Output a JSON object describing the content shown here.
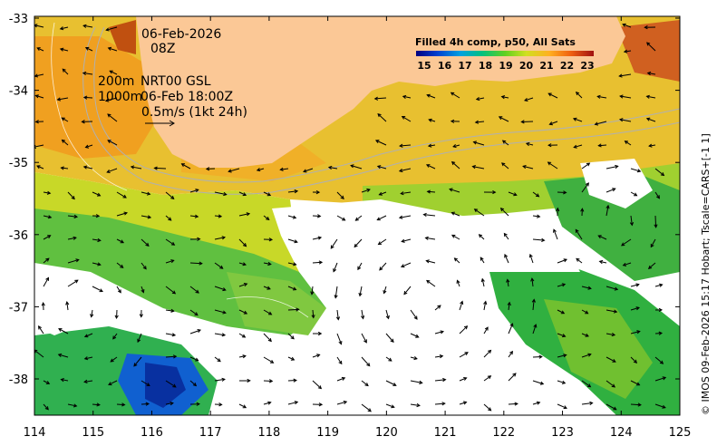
{
  "map": {
    "date_line": "06-Feb-2026",
    "time_line": "08Z",
    "depth_200": "200m",
    "depth_1000": "1000m",
    "model_line": "NRT00 GSL",
    "model_time": "06-Feb 18:00Z",
    "scale_label": "0.5m/s (1kt 24h)",
    "colorbar_title": "Filled 4h comp, p50, All Sats",
    "colorbar_ticks": [
      "15",
      "16",
      "17",
      "18",
      "19",
      "20",
      "21",
      "22",
      "23"
    ],
    "colorbar_colors": [
      "#000080",
      "#0030c0",
      "#0080e0",
      "#00c0c0",
      "#20c060",
      "#80d020",
      "#e0e020",
      "#ffa020",
      "#e05010",
      "#a01010"
    ],
    "x_ticks": [
      "114",
      "115",
      "116",
      "117",
      "118",
      "119",
      "120",
      "121",
      "122",
      "123",
      "124",
      "125"
    ],
    "y_ticks": [
      "-33",
      "-34",
      "-35",
      "-36",
      "-37",
      "-38"
    ],
    "side_credit": "© IMOS 09-Feb-2026 15:17 Hobart; Tscale=CARS+[-1 1]",
    "land_color": "#fbc896"
  }
}
